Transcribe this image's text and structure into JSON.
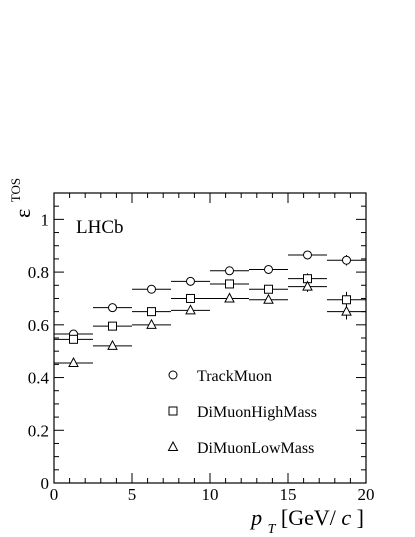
{
  "chart_data": {
    "type": "scatter",
    "experiment_label": "LHCb",
    "ylabel_main": "ε",
    "ylabel_superscript": "TOS",
    "xlabel_main": "p",
    "xlabel_sub": "T",
    "xlabel_unit_open": " [GeV/",
    "xlabel_unit_c": "c",
    "xlabel_unit_close": "]",
    "xlim": [
      0,
      20
    ],
    "ylim": [
      0,
      1.1
    ],
    "x_ticks": [
      0,
      5,
      10,
      15,
      20
    ],
    "x_tick_labels": [
      "0",
      "5",
      "10",
      "15",
      "20"
    ],
    "y_ticks": [
      0,
      0.2,
      0.4,
      0.6,
      0.8,
      1.0
    ],
    "y_tick_labels": [
      "0",
      "0.2",
      "0.4",
      "0.6",
      "0.8",
      "1"
    ],
    "bins": [
      [
        0,
        2.5
      ],
      [
        2.5,
        5
      ],
      [
        5,
        7.5
      ],
      [
        7.5,
        10
      ],
      [
        10,
        12.5
      ],
      [
        12.5,
        15
      ],
      [
        15,
        17.5
      ],
      [
        17.5,
        20
      ]
    ],
    "grid": false,
    "legend_position": "bottom-center",
    "series": [
      {
        "name": "TrackMuon",
        "marker": "circle",
        "x": [
          1.25,
          3.75,
          6.25,
          8.75,
          11.25,
          13.75,
          16.25,
          18.75
        ],
        "y": [
          0.565,
          0.665,
          0.735,
          0.765,
          0.805,
          0.81,
          0.865,
          0.845
        ],
        "yerr": [
          0.015,
          0.01,
          0.01,
          0.01,
          0.01,
          0.01,
          0.01,
          0.02
        ]
      },
      {
        "name": "DiMuonHighMass",
        "marker": "square",
        "x": [
          1.25,
          3.75,
          6.25,
          8.75,
          11.25,
          13.75,
          16.25,
          18.75
        ],
        "y": [
          0.545,
          0.595,
          0.65,
          0.7,
          0.755,
          0.735,
          0.775,
          0.695
        ],
        "yerr": [
          0.015,
          0.01,
          0.01,
          0.01,
          0.01,
          0.01,
          0.02,
          0.03
        ]
      },
      {
        "name": "DiMuonLowMass",
        "marker": "triangle",
        "x": [
          1.25,
          3.75,
          6.25,
          8.75,
          11.25,
          13.75,
          16.25,
          18.75
        ],
        "y": [
          0.455,
          0.52,
          0.6,
          0.655,
          0.7,
          0.695,
          0.745,
          0.65
        ],
        "yerr": [
          0.015,
          0.01,
          0.01,
          0.01,
          0.01,
          0.01,
          0.02,
          0.03
        ]
      }
    ]
  }
}
